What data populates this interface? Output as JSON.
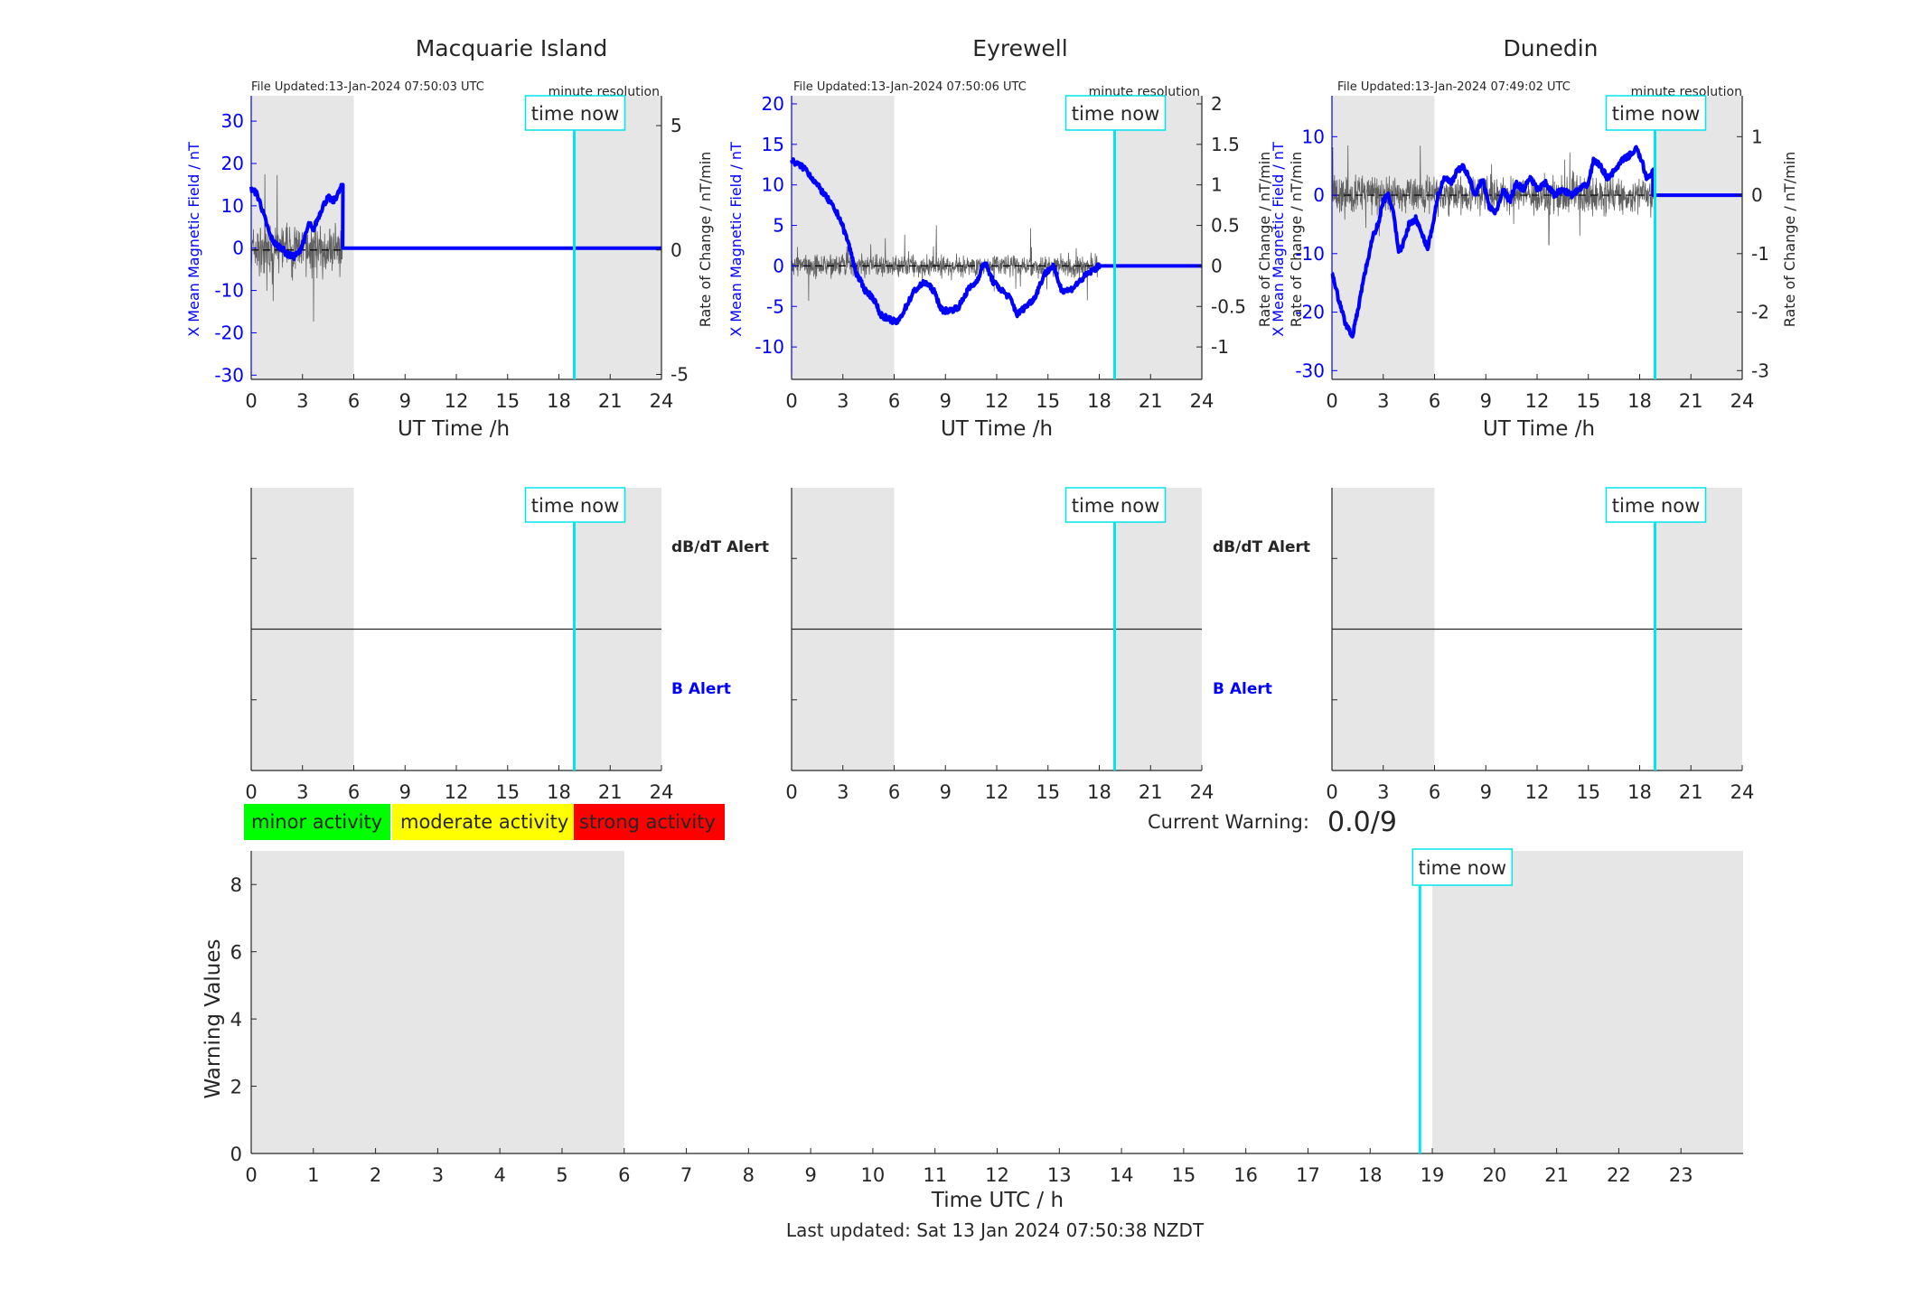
{
  "footer": {
    "last_updated": "Last updated: Sat 13 Jan 2024 07:50:38 NZDT"
  },
  "colors": {
    "x_field": "#0000ff",
    "rate": "#606060",
    "time_now": "#00e5ee",
    "shade": "#e6e6e6",
    "minor": "#00ff00",
    "moderate": "#ffff00",
    "strong": "#ff0000"
  },
  "time_now_label": "time now",
  "time_now_hour": 18.9,
  "stations": [
    {
      "name": "Macquarie Island",
      "file_updated": "File Updated:13-Jan-2024 07:50:03 UTC",
      "resolution": "minute resolution",
      "night_shading": [
        [
          0,
          6
        ],
        [
          19,
          24
        ]
      ],
      "x_axis": {
        "label": "UT Time /h",
        "ticks": [
          0,
          3,
          6,
          9,
          12,
          15,
          18,
          21,
          24
        ],
        "range": [
          0,
          24
        ]
      },
      "left_axis": {
        "label": "X Mean Magnetic Field / nT",
        "range": [
          -31,
          36
        ],
        "ticks": [
          -30,
          -20,
          -10,
          0,
          10,
          20,
          30
        ]
      },
      "right_axis": {
        "label": "Rate of Change / nT/min",
        "range": [
          -5.2,
          6.2
        ],
        "ticks": [
          -5,
          0,
          5
        ]
      },
      "x_field_data_to_hour": 5.35,
      "x_field_data": [
        [
          0,
          14
        ],
        [
          0.3,
          13
        ],
        [
          0.5,
          11
        ],
        [
          0.8,
          7
        ],
        [
          1.1,
          3
        ],
        [
          1.4,
          1
        ],
        [
          1.8,
          0
        ],
        [
          2.1,
          -1.5
        ],
        [
          2.5,
          -2
        ],
        [
          2.8,
          -1
        ],
        [
          3.1,
          2
        ],
        [
          3.4,
          6
        ],
        [
          3.6,
          4
        ],
        [
          3.9,
          7
        ],
        [
          4.2,
          10
        ],
        [
          4.5,
          12
        ],
        [
          4.8,
          11
        ],
        [
          5.1,
          13
        ],
        [
          5.35,
          15
        ]
      ],
      "rate_amplitude": 0.9,
      "rate_data_to_hour": 5.35,
      "alert_panel": {
        "top_label": "dB/dT Alert",
        "bottom_label": "B Alert"
      }
    },
    {
      "name": "Eyrewell",
      "file_updated": "File Updated:13-Jan-2024 07:50:06 UTC",
      "resolution": "minute resolution",
      "night_shading": [
        [
          0,
          6
        ],
        [
          19,
          24
        ]
      ],
      "x_axis": {
        "label": "UT Time /h",
        "ticks": [
          0,
          3,
          6,
          9,
          12,
          15,
          18,
          21,
          24
        ],
        "range": [
          0,
          24
        ]
      },
      "left_axis": {
        "label": "X Mean Magnetic Field / nT",
        "range": [
          -14,
          21
        ],
        "ticks": [
          -10,
          -5,
          0,
          5,
          10,
          15,
          20
        ]
      },
      "right_axis": {
        "label": "Rate of Change / nT/min",
        "range": [
          -1.4,
          2.1
        ],
        "ticks": [
          -1,
          -0.5,
          0,
          0.5,
          1,
          1.5,
          2
        ]
      },
      "x_field_data_to_hour": 18.0,
      "x_field_data": [
        [
          0,
          13
        ],
        [
          0.8,
          12
        ],
        [
          1.5,
          10
        ],
        [
          2.2,
          8
        ],
        [
          2.8,
          6
        ],
        [
          3.3,
          3
        ],
        [
          3.8,
          -1
        ],
        [
          4.3,
          -3
        ],
        [
          4.8,
          -4
        ],
        [
          5.2,
          -6
        ],
        [
          5.6,
          -6.5
        ],
        [
          6.2,
          -7
        ],
        [
          6.7,
          -5
        ],
        [
          7.2,
          -3
        ],
        [
          7.8,
          -2
        ],
        [
          8.3,
          -3
        ],
        [
          8.8,
          -5.5
        ],
        [
          9.3,
          -5.5
        ],
        [
          9.8,
          -5
        ],
        [
          10.3,
          -3
        ],
        [
          10.8,
          -2
        ],
        [
          11.3,
          0.5
        ],
        [
          11.8,
          -2
        ],
        [
          12.3,
          -3
        ],
        [
          12.8,
          -4
        ],
        [
          13.2,
          -6
        ],
        [
          13.7,
          -5
        ],
        [
          14.2,
          -4
        ],
        [
          14.8,
          -1
        ],
        [
          15.3,
          0
        ],
        [
          15.8,
          -3
        ],
        [
          16.3,
          -3
        ],
        [
          16.8,
          -2
        ],
        [
          17.3,
          -1
        ],
        [
          18.0,
          0
        ]
      ],
      "rate_amplitude": 0.12,
      "rate_data_to_hour": 18.0,
      "alert_panel": {
        "top_label": "dB/dT Alert",
        "bottom_label": "B Alert"
      }
    },
    {
      "name": "Dunedin",
      "file_updated": "File Updated:13-Jan-2024 07:49:02 UTC",
      "resolution": "minute resolution",
      "night_shading": [
        [
          0,
          6
        ],
        [
          19,
          24
        ]
      ],
      "x_axis": {
        "label": "UT Time /h",
        "ticks": [
          0,
          3,
          6,
          9,
          12,
          15,
          18,
          21,
          24
        ],
        "range": [
          0,
          24
        ]
      },
      "left_axis": {
        "label": "X Mean Magnetic Field / nT",
        "range": [
          -31.5,
          17
        ],
        "ticks": [
          -30,
          -20,
          -10,
          0,
          10
        ]
      },
      "right_axis": {
        "label": "Rate of Change / nT/min",
        "range": [
          -3.15,
          1.7
        ],
        "ticks": [
          -3,
          -2,
          -1,
          0,
          1
        ]
      },
      "x_field_data_to_hour": 18.8,
      "x_field_data": [
        [
          0,
          -13
        ],
        [
          0.4,
          -18
        ],
        [
          0.8,
          -22
        ],
        [
          1.2,
          -24
        ],
        [
          1.5,
          -20
        ],
        [
          1.8,
          -15
        ],
        [
          2.1,
          -11
        ],
        [
          2.4,
          -7
        ],
        [
          2.7,
          -5
        ],
        [
          3.0,
          -1
        ],
        [
          3.3,
          0
        ],
        [
          3.6,
          -3
        ],
        [
          3.9,
          -10
        ],
        [
          4.2,
          -8
        ],
        [
          4.5,
          -5
        ],
        [
          4.9,
          -4
        ],
        [
          5.3,
          -7
        ],
        [
          5.6,
          -9
        ],
        [
          5.9,
          -5
        ],
        [
          6.2,
          0
        ],
        [
          6.6,
          3
        ],
        [
          7.0,
          2
        ],
        [
          7.3,
          4
        ],
        [
          7.7,
          5
        ],
        [
          8.0,
          3
        ],
        [
          8.4,
          0
        ],
        [
          8.8,
          3
        ],
        [
          9.2,
          -2
        ],
        [
          9.6,
          -3
        ],
        [
          10.0,
          1
        ],
        [
          10.4,
          -1
        ],
        [
          10.8,
          2
        ],
        [
          11.2,
          1
        ],
        [
          11.6,
          3
        ],
        [
          12.0,
          1
        ],
        [
          12.5,
          2
        ],
        [
          13.0,
          0
        ],
        [
          13.5,
          1
        ],
        [
          14.0,
          0
        ],
        [
          14.5,
          1
        ],
        [
          15.0,
          2
        ],
        [
          15.3,
          6
        ],
        [
          15.7,
          5
        ],
        [
          16.1,
          3
        ],
        [
          16.5,
          4
        ],
        [
          17.0,
          6
        ],
        [
          17.5,
          7
        ],
        [
          17.8,
          8
        ],
        [
          18.1,
          6
        ],
        [
          18.4,
          3
        ],
        [
          18.8,
          4
        ]
      ],
      "rate_amplitude": 0.28,
      "rate_data_to_hour": 18.8,
      "alert_panel": null
    }
  ],
  "legend": [
    {
      "label": "minor activity",
      "color": "#00ff00"
    },
    {
      "label": "moderate activity",
      "color": "#ffff00"
    },
    {
      "label": "strong activity",
      "color": "#ff0000"
    }
  ],
  "current_warning": {
    "label": "Current Warning:",
    "value": "0.0/9"
  },
  "chart_data": [
    {
      "type": "line",
      "title": "Macquarie Island",
      "xlabel": "UT Time /h",
      "ylabel": "X Mean Magnetic Field / nT",
      "y2label": "Rate of Change / nT/min",
      "xlim": [
        0,
        24
      ],
      "ylim": [
        -31,
        36
      ],
      "y2lim": [
        -5.2,
        6.2
      ],
      "series": [
        {
          "name": "X Mean Magnetic Field / nT",
          "x": [
            0,
            1,
            2,
            3,
            4,
            5,
            5.35,
            6,
            12,
            18,
            24
          ],
          "values": [
            14,
            5,
            -1.5,
            2,
            10,
            13,
            15,
            0,
            0,
            0,
            0
          ]
        }
      ]
    },
    {
      "type": "line",
      "title": "Eyrewell",
      "xlabel": "UT Time /h",
      "ylabel": "X Mean Magnetic Field / nT",
      "y2label": "Rate of Change / nT/min",
      "xlim": [
        0,
        24
      ],
      "ylim": [
        -14,
        21
      ],
      "y2lim": [
        -1.4,
        2.1
      ],
      "series": [
        {
          "name": "X Mean Magnetic Field / nT",
          "x": [
            0,
            3,
            6,
            9,
            12,
            15,
            18,
            24
          ],
          "values": [
            13,
            6,
            -7,
            -5.5,
            -3,
            0,
            0,
            0
          ]
        }
      ]
    },
    {
      "type": "line",
      "title": "Dunedin",
      "xlabel": "UT Time /h",
      "ylabel": "X Mean Magnetic Field / nT",
      "y2label": "Rate of Change / nT/min",
      "xlim": [
        0,
        24
      ],
      "ylim": [
        -31.5,
        17
      ],
      "y2lim": [
        -3.15,
        1.7
      ],
      "series": [
        {
          "name": "X Mean Magnetic Field / nT",
          "x": [
            0,
            1.2,
            3,
            6,
            9,
            12,
            15,
            17.8,
            18.8,
            24
          ],
          "values": [
            -13,
            -24,
            -1,
            -5,
            3,
            1,
            2,
            8,
            4,
            0
          ]
        }
      ]
    },
    {
      "type": "bar",
      "xlabel": "Time UTC / h",
      "ylabel": "Warning Values",
      "categories": [
        "0",
        "1",
        "2",
        "3",
        "4",
        "5",
        "6",
        "7",
        "8",
        "9",
        "10",
        "11",
        "12",
        "13",
        "14",
        "15",
        "16",
        "17",
        "18",
        "19",
        "20",
        "21",
        "22",
        "23"
      ],
      "values": [
        0,
        0,
        0,
        0,
        0,
        0,
        0,
        0,
        0,
        0,
        0,
        0,
        0,
        0,
        0,
        0,
        0,
        0,
        0,
        0,
        0,
        0,
        0,
        0
      ],
      "ylim": [
        0,
        9
      ],
      "yticks": [
        0,
        2,
        4,
        6,
        8
      ],
      "night_shading": [
        [
          0,
          6
        ],
        [
          19,
          24
        ]
      ],
      "time_now_hour": 18.8
    }
  ]
}
